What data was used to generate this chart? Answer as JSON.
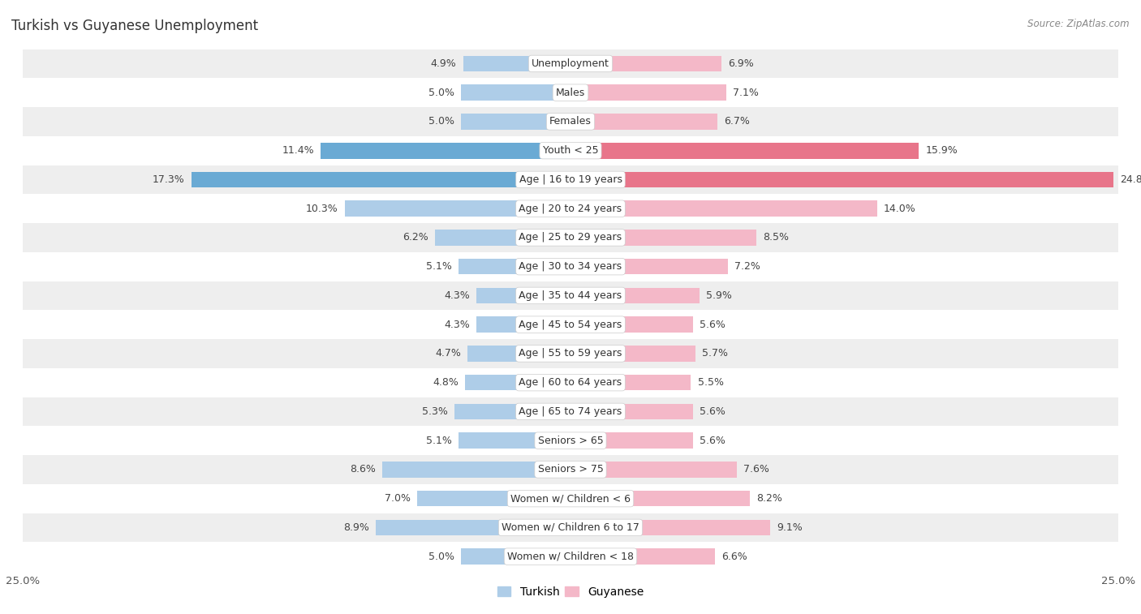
{
  "title": "Turkish vs Guyanese Unemployment",
  "source": "Source: ZipAtlas.com",
  "categories": [
    "Unemployment",
    "Males",
    "Females",
    "Youth < 25",
    "Age | 16 to 19 years",
    "Age | 20 to 24 years",
    "Age | 25 to 29 years",
    "Age | 30 to 34 years",
    "Age | 35 to 44 years",
    "Age | 45 to 54 years",
    "Age | 55 to 59 years",
    "Age | 60 to 64 years",
    "Age | 65 to 74 years",
    "Seniors > 65",
    "Seniors > 75",
    "Women w/ Children < 6",
    "Women w/ Children 6 to 17",
    "Women w/ Children < 18"
  ],
  "turkish": [
    4.9,
    5.0,
    5.0,
    11.4,
    17.3,
    10.3,
    6.2,
    5.1,
    4.3,
    4.3,
    4.7,
    4.8,
    5.3,
    5.1,
    8.6,
    7.0,
    8.9,
    5.0
  ],
  "guyanese": [
    6.9,
    7.1,
    6.7,
    15.9,
    24.8,
    14.0,
    8.5,
    7.2,
    5.9,
    5.6,
    5.7,
    5.5,
    5.6,
    5.6,
    7.6,
    8.2,
    9.1,
    6.6
  ],
  "turkish_color": "#aecde8",
  "guyanese_color": "#f4b8c8",
  "turkish_highlight_color": "#6aaad4",
  "guyanese_highlight_color": "#e8758a",
  "background_row_light": "#eeeeee",
  "background_row_white": "#ffffff",
  "bar_height": 0.55,
  "xlim": 25.0,
  "legend_turkish": "Turkish",
  "legend_guyanese": "Guyanese",
  "label_fontsize": 9,
  "title_fontsize": 12
}
